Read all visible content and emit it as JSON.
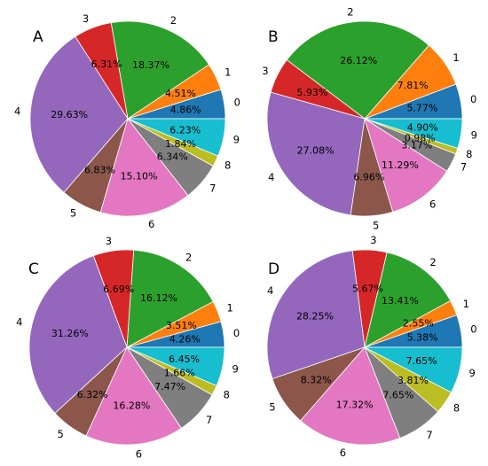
{
  "chart_data": [
    {
      "type": "pie",
      "panel": "A",
      "categories": [
        "0",
        "1",
        "2",
        "3",
        "4",
        "5",
        "6",
        "7",
        "8",
        "9"
      ],
      "values": [
        4.86,
        4.51,
        18.37,
        6.31,
        29.63,
        6.83,
        15.1,
        6.34,
        1.84,
        6.23
      ],
      "value_labels": [
        "4.86%",
        "4.51%",
        "18.37%",
        "6.31%",
        "29.63%",
        "6.83%",
        "15.10%",
        "6.34%",
        "1.84%",
        "6.23%"
      ]
    },
    {
      "type": "pie",
      "panel": "B",
      "categories": [
        "0",
        "1",
        "2",
        "3",
        "4",
        "5",
        "6",
        "7",
        "8",
        "9"
      ],
      "values": [
        5.77,
        7.81,
        26.12,
        5.93,
        27.08,
        6.96,
        11.29,
        3.17,
        0.98,
        4.9
      ],
      "value_labels": [
        "5.77%",
        "7.81%",
        "26.12%",
        "5.93%",
        "27.08%",
        "6.96%",
        "11.29%",
        "3.17%",
        "0.98%",
        "4.90%"
      ]
    },
    {
      "type": "pie",
      "panel": "C",
      "categories": [
        "0",
        "1",
        "2",
        "3",
        "4",
        "5",
        "6",
        "7",
        "8",
        "9"
      ],
      "values": [
        4.26,
        3.51,
        16.12,
        6.69,
        31.26,
        6.32,
        16.28,
        7.47,
        1.66,
        6.45
      ],
      "value_labels": [
        "4.26%",
        "3.51%",
        "16.12%",
        "6.69%",
        "31.26%",
        "6.32%",
        "16.28%",
        "7.47%",
        "1.66%",
        "6.45%"
      ]
    },
    {
      "type": "pie",
      "panel": "D",
      "categories": [
        "0",
        "1",
        "2",
        "3",
        "4",
        "5",
        "6",
        "7",
        "8",
        "9"
      ],
      "values": [
        5.38,
        2.55,
        13.41,
        5.67,
        28.25,
        8.32,
        17.32,
        7.65,
        3.81,
        7.65
      ],
      "value_labels": [
        "5.38%",
        "2.55%",
        "13.41%",
        "5.67%",
        "28.25%",
        "8.32%",
        "17.32%",
        "7.65%",
        "3.81%",
        "7.65%"
      ]
    }
  ],
  "colors": [
    "#1f77b4",
    "#ff7f0e",
    "#2ca02c",
    "#d62728",
    "#9467bd",
    "#8c564b",
    "#e377c2",
    "#7f7f7f",
    "#bcbd22",
    "#17becf"
  ],
  "start_angle_deg": 0,
  "direction": "counterclockwise"
}
